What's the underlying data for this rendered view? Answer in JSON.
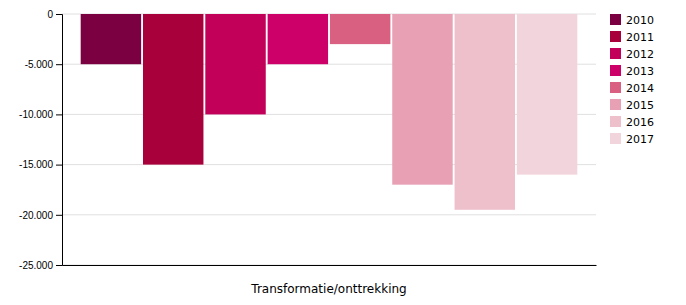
{
  "chart_data": {
    "type": "bar",
    "categories": [
      "2010",
      "2011",
      "2012",
      "2013",
      "2014",
      "2015",
      "2016",
      "2017"
    ],
    "values": [
      -5000,
      -15000,
      -10000,
      -5000,
      -3000,
      -17000,
      -19500,
      -16000
    ],
    "colors": [
      "#7B0041",
      "#A8003A",
      "#C2005A",
      "#CC0068",
      "#D96080",
      "#E8A0B4",
      "#EEC0CC",
      "#F2D5DC"
    ],
    "xlabel": "Transformatie/onttrekking",
    "ylim": [
      -25000,
      0
    ],
    "yticks": [
      0,
      {
        "value": -5000,
        "label": "-5.000"
      },
      {
        "value": -10000,
        "label": "-10.000"
      },
      {
        "value": -15000,
        "label": "-15.000"
      },
      {
        "value": -20000,
        "label": "-20.000"
      },
      {
        "value": -25000,
        "label": "-25.000"
      }
    ],
    "grid": true,
    "legend": "right",
    "tick_labels": "y"
  }
}
